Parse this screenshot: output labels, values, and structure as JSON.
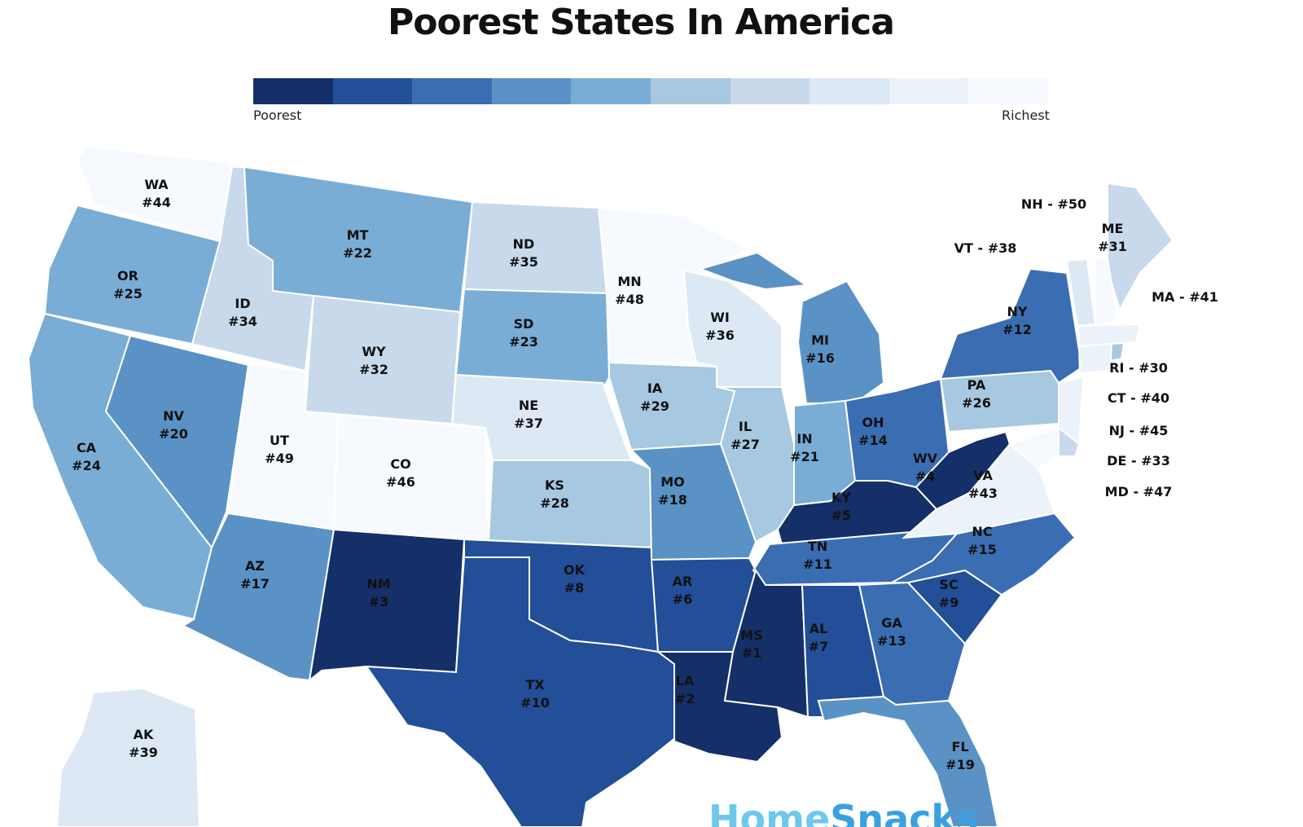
{
  "title": "Poorest States In America",
  "legend": {
    "low_label": "Poorest",
    "high_label": "Richest",
    "colors": [
      "#152f69",
      "#234e98",
      "#3b6db3",
      "#5a92c5",
      "#7aadd5",
      "#a6c8e0",
      "#c8d9ec",
      "#dde8f5",
      "#ebf2fa",
      "#f6f9fe"
    ]
  },
  "rank_prefix": "#",
  "states": [
    {
      "abbr": "WA",
      "rank": 44,
      "bucket": 9
    },
    {
      "abbr": "OR",
      "rank": 25,
      "bucket": 4
    },
    {
      "abbr": "CA",
      "rank": 24,
      "bucket": 4
    },
    {
      "abbr": "ID",
      "rank": 34,
      "bucket": 6
    },
    {
      "abbr": "NV",
      "rank": 20,
      "bucket": 3
    },
    {
      "abbr": "MT",
      "rank": 22,
      "bucket": 4
    },
    {
      "abbr": "WY",
      "rank": 32,
      "bucket": 6
    },
    {
      "abbr": "UT",
      "rank": 49,
      "bucket": 9
    },
    {
      "abbr": "AZ",
      "rank": 17,
      "bucket": 3
    },
    {
      "abbr": "CO",
      "rank": 46,
      "bucket": 9
    },
    {
      "abbr": "NM",
      "rank": 3,
      "bucket": 0
    },
    {
      "abbr": "ND",
      "rank": 35,
      "bucket": 6
    },
    {
      "abbr": "SD",
      "rank": 23,
      "bucket": 4
    },
    {
      "abbr": "NE",
      "rank": 37,
      "bucket": 7
    },
    {
      "abbr": "KS",
      "rank": 28,
      "bucket": 5
    },
    {
      "abbr": "OK",
      "rank": 8,
      "bucket": 1
    },
    {
      "abbr": "TX",
      "rank": 10,
      "bucket": 1
    },
    {
      "abbr": "MN",
      "rank": 48,
      "bucket": 9
    },
    {
      "abbr": "IA",
      "rank": 29,
      "bucket": 5
    },
    {
      "abbr": "MO",
      "rank": 18,
      "bucket": 3
    },
    {
      "abbr": "AR",
      "rank": 6,
      "bucket": 1
    },
    {
      "abbr": "LA",
      "rank": 2,
      "bucket": 0
    },
    {
      "abbr": "WI",
      "rank": 36,
      "bucket": 7
    },
    {
      "abbr": "IL",
      "rank": 27,
      "bucket": 5
    },
    {
      "abbr": "MI",
      "rank": 16,
      "bucket": 3
    },
    {
      "abbr": "IN",
      "rank": 21,
      "bucket": 4
    },
    {
      "abbr": "OH",
      "rank": 14,
      "bucket": 2
    },
    {
      "abbr": "KY",
      "rank": 5,
      "bucket": 0
    },
    {
      "abbr": "TN",
      "rank": 11,
      "bucket": 2
    },
    {
      "abbr": "MS",
      "rank": 1,
      "bucket": 0
    },
    {
      "abbr": "AL",
      "rank": 7,
      "bucket": 1
    },
    {
      "abbr": "GA",
      "rank": 13,
      "bucket": 2
    },
    {
      "abbr": "FL",
      "rank": 19,
      "bucket": 3
    },
    {
      "abbr": "SC",
      "rank": 9,
      "bucket": 1
    },
    {
      "abbr": "NC",
      "rank": 15,
      "bucket": 2
    },
    {
      "abbr": "VA",
      "rank": 43,
      "bucket": 8
    },
    {
      "abbr": "WV",
      "rank": 4,
      "bucket": 0
    },
    {
      "abbr": "PA",
      "rank": 26,
      "bucket": 5
    },
    {
      "abbr": "NY",
      "rank": 12,
      "bucket": 2
    },
    {
      "abbr": "ME",
      "rank": 31,
      "bucket": 6
    },
    {
      "abbr": "AK",
      "rank": 39,
      "bucket": 7
    }
  ],
  "small_states": [
    {
      "abbr": "NH",
      "rank": 50,
      "bucket": 9
    },
    {
      "abbr": "VT",
      "rank": 38,
      "bucket": 7
    },
    {
      "abbr": "MA",
      "rank": 41,
      "bucket": 8
    },
    {
      "abbr": "RI",
      "rank": 30,
      "bucket": 5
    },
    {
      "abbr": "CT",
      "rank": 40,
      "bucket": 8
    },
    {
      "abbr": "NJ",
      "rank": 45,
      "bucket": 8
    },
    {
      "abbr": "DE",
      "rank": 33,
      "bucket": 6
    },
    {
      "abbr": "MD",
      "rank": 47,
      "bucket": 9
    }
  ],
  "brand": {
    "part1": "Home",
    "part2": "Snacks"
  }
}
